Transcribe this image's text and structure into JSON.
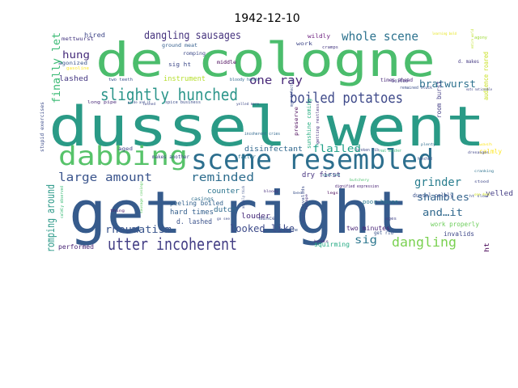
{
  "chart_data": {
    "type": "wordcloud",
    "title": "1942-12-10",
    "words": [
      {
        "text": "dussel went",
        "size": 68,
        "color": "#2a9a86"
      },
      {
        "text": "get right",
        "size": 72,
        "color": "#365b8c"
      },
      {
        "text": "de cologne",
        "size": 58,
        "color": "#4bbd6c"
      },
      {
        "text": "scene resembled",
        "size": 34,
        "color": "#2d6f8e"
      },
      {
        "text": "dabbing",
        "size": 32,
        "color": "#57c36a"
      },
      {
        "text": "slightly hunched",
        "size": 20,
        "color": "#2b958a"
      },
      {
        "text": "boiled potatoes",
        "size": 18,
        "color": "#3f4a8a"
      },
      {
        "text": "utter incoherent",
        "size": 20,
        "color": "#433e85"
      },
      {
        "text": "dangling sausages",
        "size": 13,
        "color": "#46337e"
      },
      {
        "text": "whole scene",
        "size": 15,
        "color": "#2c728e"
      },
      {
        "text": "large amount",
        "size": 14,
        "color": "#3a548c"
      },
      {
        "text": "reminded",
        "size": 14,
        "color": "#2e6d8e"
      },
      {
        "text": "dangling",
        "size": 16,
        "color": "#7ad151"
      },
      {
        "text": "grinder",
        "size": 14,
        "color": "#287d8e"
      },
      {
        "text": "romping around",
        "size": 13,
        "color": "#2e9a8a"
      },
      {
        "text": "finally let",
        "size": 13,
        "color": "#3cbb75"
      },
      {
        "text": "one ray",
        "size": 14,
        "color": "#482878"
      },
      {
        "text": "bratwurst",
        "size": 12,
        "color": "#2d718e"
      },
      {
        "text": "rheumatism",
        "size": 12,
        "color": "#39558c"
      },
      {
        "text": "looked like",
        "size": 12,
        "color": "#3e4c8a"
      },
      {
        "text": "sig",
        "size": 13,
        "color": "#2b768e"
      },
      {
        "text": "shambles",
        "size": 12,
        "color": "#33638d"
      },
      {
        "text": "and…it",
        "size": 12,
        "color": "#30688d"
      },
      {
        "text": "flailed",
        "size": 12,
        "color": "#1fa088"
      },
      {
        "text": "hung",
        "size": 12,
        "color": "#472d7b"
      },
      {
        "text": "lashed",
        "size": 9,
        "color": "#453882"
      },
      {
        "text": "instrument",
        "size": 9,
        "color": "#b5de2b"
      },
      {
        "text": "disinfectant",
        "size": 9,
        "color": "#31688e"
      },
      {
        "text": "dry first",
        "size": 9,
        "color": "#46337f"
      },
      {
        "text": "yelled",
        "size": 9,
        "color": "#433d84"
      },
      {
        "text": "counter",
        "size": 9,
        "color": "#2b748e"
      },
      {
        "text": "hard times",
        "size": 9,
        "color": "#35608d"
      },
      {
        "text": "d. lashed",
        "size": 9,
        "color": "#3b528b"
      },
      {
        "text": "dutch",
        "size": 9,
        "color": "#2f6b8e"
      },
      {
        "text": "louder",
        "size": 9,
        "color": "#472c7a"
      },
      {
        "text": "work properly",
        "size": 8,
        "color": "#6ccd5a"
      },
      {
        "text": "invalids",
        "size": 8,
        "color": "#3f4889"
      },
      {
        "text": "peeling boiled",
        "size": 8,
        "color": "#33628d"
      },
      {
        "text": "performed",
        "size": 8,
        "color": "#482475"
      },
      {
        "text": "squirming",
        "size": 8,
        "color": "#24aa83"
      },
      {
        "text": "hired",
        "size": 8,
        "color": "#3f4788"
      },
      {
        "text": "calmly",
        "size": 8,
        "color": "#fde725"
      },
      {
        "text": "two minutes",
        "size": 8,
        "color": "#482576"
      },
      {
        "text": "dussel calmly",
        "size": 7,
        "color": "#3b528b"
      },
      {
        "text": "poor-house",
        "size": 7,
        "color": "#2a788e"
      },
      {
        "text": "room burst",
        "size": 8,
        "color": "#433e85"
      },
      {
        "text": "audience roared",
        "size": 8,
        "color": "#c8e020"
      },
      {
        "text": "ht",
        "size": 8,
        "color": "#440154"
      },
      {
        "text": "middle",
        "size": 6,
        "color": "#440154"
      },
      {
        "text": "wildly",
        "size": 7,
        "color": "#6b1d7e"
      },
      {
        "text": "sig ht",
        "size": 7,
        "color": "#3e4a89"
      },
      {
        "text": "mettwurst",
        "size": 6,
        "color": "#453781"
      },
      {
        "text": "agonized",
        "size": 6,
        "color": "#3a548c"
      },
      {
        "text": "romping",
        "size": 6,
        "color": "#3e4a89"
      },
      {
        "text": "ground meat",
        "size": 6,
        "color": "#355f8d"
      },
      {
        "text": "sunshine coming",
        "size": 7,
        "color": "#27ad81"
      },
      {
        "text": "boiled",
        "size": 6,
        "color": "#433e85"
      },
      {
        "text": "d. makes",
        "size": 6,
        "color": "#443983"
      },
      {
        "text": "times ahead",
        "size": 6,
        "color": "#482878"
      },
      {
        "text": "stupid exercises",
        "size": 6,
        "color": "#3d4d8a"
      },
      {
        "text": "makes another",
        "size": 6,
        "color": "#3f4788"
      },
      {
        "text": "aged",
        "size": 6,
        "color": "#404688"
      },
      {
        "text": "fatter",
        "size": 6,
        "color": "#2c728e"
      },
      {
        "text": "mince",
        "size": 6,
        "color": "#3c4f8a"
      },
      {
        "text": "get rid",
        "size": 6,
        "color": "#3a538b"
      },
      {
        "text": "casings",
        "size": 6,
        "color": "#2e6e8e"
      },
      {
        "text": "long pipe",
        "size": 5,
        "color": "#482878"
      },
      {
        "text": "two teeth",
        "size": 5,
        "color": "#3b528b"
      },
      {
        "text": "bloody hands",
        "size": 5,
        "color": "#31688e"
      },
      {
        "text": "spice business",
        "size": 5,
        "color": "#3d4e8a"
      },
      {
        "text": "getting restless",
        "size": 5,
        "color": "#46307e"
      },
      {
        "text": "preserve",
        "size": 6,
        "color": "#440154"
      },
      {
        "text": "aged invalids",
        "size": 5,
        "color": "#3d4d8a"
      },
      {
        "text": "dignified expression",
        "size": 5,
        "color": "#482173"
      },
      {
        "text": "resembled one",
        "size": 5,
        "color": "#39568c"
      },
      {
        "text": "spelled",
        "size": 5,
        "color": "#2d718e"
      },
      {
        "text": "incoherent cries",
        "size": 5,
        "color": "#31688e"
      },
      {
        "text": "broken rib",
        "size": 5,
        "color": "#3e4989"
      },
      {
        "text": "real butcher",
        "size": 5,
        "color": "#35b779"
      },
      {
        "text": "hunched",
        "size": 5,
        "color": "#3b518b"
      },
      {
        "text": "remained stuck",
        "size": 5,
        "color": "#3c508b"
      },
      {
        "text": "learning bold",
        "size": 4,
        "color": "#e5e419"
      },
      {
        "text": "work",
        "size": 6,
        "color": "#3f4788"
      },
      {
        "text": "agony",
        "size": 5,
        "color": "#a0da39"
      },
      {
        "text": "ages",
        "size": 5,
        "color": "#414487"
      },
      {
        "text": "cramps",
        "size": 5,
        "color": "#453781"
      },
      {
        "text": "myr infection",
        "size": 5,
        "color": "#3c4f8a"
      },
      {
        "text": "drenanges",
        "size": 4,
        "color": "#404688"
      },
      {
        "text": "cranking",
        "size": 4,
        "color": "#2c718e"
      },
      {
        "text": "one deal",
        "size": 4,
        "color": "#d0e11c"
      },
      {
        "text": "entire world",
        "size": 4,
        "color": "#bddf26"
      },
      {
        "text": "plenty",
        "size": 4,
        "color": "#2e6d8e"
      },
      {
        "text": "pride and it",
        "size": 4,
        "color": "#3c4f8a"
      },
      {
        "text": "lashed",
        "size": 4,
        "color": "#3f4889"
      },
      {
        "text": "actually thick",
        "size": 4,
        "color": "#3b518b"
      },
      {
        "text": "bloody",
        "size": 4,
        "color": "#472f7d"
      },
      {
        "text": "yelled more",
        "size": 4,
        "color": "#3e4989"
      },
      {
        "text": "scrape",
        "size": 4,
        "color": "#46337e"
      },
      {
        "text": "calmly observed",
        "size": 5,
        "color": "#3aba76"
      },
      {
        "text": "gasoline",
        "size": 5,
        "color": "#fde725"
      },
      {
        "text": "thing",
        "size": 4,
        "color": "#481668"
      },
      {
        "text": "ht slow",
        "size": 4,
        "color": "#3d4e8a"
      },
      {
        "text": "stood",
        "size": 4,
        "color": "#3f4889"
      },
      {
        "text": "hooks",
        "size": 4,
        "color": "#482878"
      },
      {
        "text": "butchery",
        "size": 4,
        "color": "#4ac16d"
      },
      {
        "text": "eats noticeable",
        "size": 4,
        "color": "#414487"
      },
      {
        "text": "wash",
        "size": 4,
        "color": "#fde725"
      },
      {
        "text": "sausage casings",
        "size": 4,
        "color": "#5ec962"
      },
      {
        "text": "go see",
        "size": 4,
        "color": "#3e4a89"
      },
      {
        "text": "bed",
        "size": 4,
        "color": "#3b528b"
      },
      {
        "text": "legs",
        "size": 4,
        "color": "#440154"
      }
    ]
  }
}
